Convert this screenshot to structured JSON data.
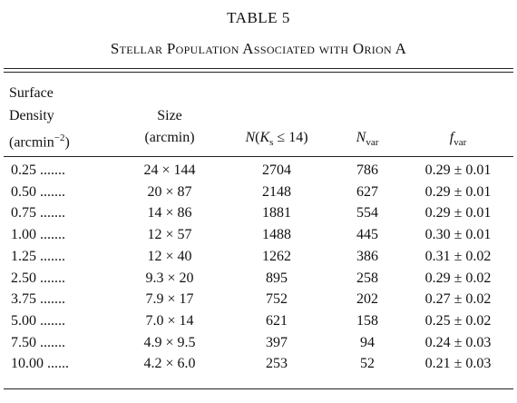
{
  "table": {
    "label": "TABLE 5",
    "caption": "Stellar Population Associated with Orion A",
    "header": [
      [
        [
          {
            "text": "Surface"
          }
        ],
        [
          {
            "text": "Density"
          }
        ],
        [
          {
            "text": "(arcmin"
          },
          {
            "sup": "−2"
          },
          {
            "text": ")"
          }
        ]
      ],
      [
        [
          {
            "text": "Size"
          }
        ],
        [
          {
            "text": "(arcmin)"
          }
        ]
      ],
      [
        [
          {
            "i": "N"
          },
          {
            "text": "("
          },
          {
            "i": "K"
          },
          {
            "sub": "s"
          },
          {
            "text": " ≤ 14)"
          }
        ]
      ],
      [
        [
          {
            "i": "N"
          },
          {
            "sub": "var"
          }
        ]
      ],
      [
        [
          {
            "i": "f"
          },
          {
            "sub": "var"
          }
        ]
      ]
    ],
    "rows": [
      [
        "0.25 .......",
        "24 × 144",
        2704,
        786,
        "0.29 ± 0.01"
      ],
      [
        "0.50 .......",
        "20 × 87",
        2148,
        627,
        "0.29 ± 0.01"
      ],
      [
        "0.75 .......",
        "14 × 86",
        1881,
        554,
        "0.29 ± 0.01"
      ],
      [
        "1.00 .......",
        "12 × 57",
        1488,
        445,
        "0.30 ± 0.01"
      ],
      [
        "1.25 .......",
        "12 × 40",
        1262,
        386,
        "0.31 ± 0.02"
      ],
      [
        "2.50 .......",
        "9.3 × 20",
        895,
        258,
        "0.29 ± 0.02"
      ],
      [
        "3.75 .......",
        "7.9 × 17",
        752,
        202,
        "0.27 ± 0.02"
      ],
      [
        "5.00 .......",
        "7.0 × 14",
        621,
        158,
        "0.25 ± 0.02"
      ],
      [
        "7.50 .......",
        "4.9 × 9.5",
        397,
        94,
        "0.24 ± 0.03"
      ],
      [
        "10.00 ......",
        "4.2 × 6.0",
        253,
        52,
        "0.21 ± 0.03"
      ]
    ]
  }
}
